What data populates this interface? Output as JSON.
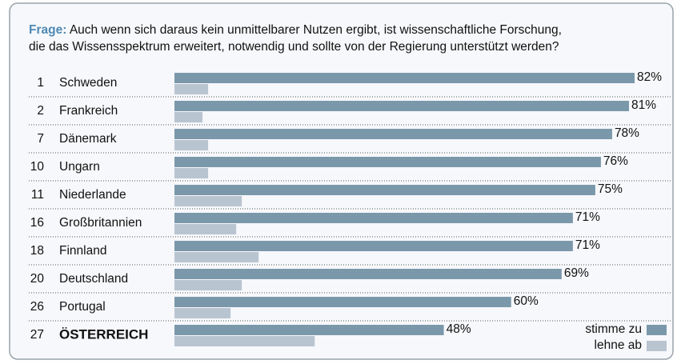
{
  "chart_data": {
    "type": "bar",
    "orientation": "horizontal",
    "title_label": "Frage:",
    "title_lines": [
      "Auch wenn sich daraus kein unmittelbarer Nutzen ergibt, ist wissenschaftliche Forschung,",
      "die das Wissensspektrum erweitert, notwendig und sollte von der Regierung unterstützt werden?"
    ],
    "ranks": [
      1,
      2,
      7,
      10,
      11,
      16,
      18,
      20,
      26,
      27
    ],
    "categories": [
      "Schweden",
      "Frankreich",
      "Dänemark",
      "Ungarn",
      "Niederlande",
      "Großbritannien",
      "Finnland",
      "Deutschland",
      "Portugal",
      "ÖSTERREICH"
    ],
    "highlight": "ÖSTERREICH",
    "highlight_color": "#d62a2a",
    "xlim": [
      0,
      82
    ],
    "series": [
      {
        "name": "stimme zu",
        "color": "#7b98ab",
        "values": [
          82,
          81,
          78,
          76,
          75,
          71,
          71,
          69,
          60,
          48
        ],
        "value_labels": [
          "82%",
          "81%",
          "78%",
          "76%",
          "75%",
          "71%",
          "71%",
          "69%",
          "60%",
          "48%"
        ]
      },
      {
        "name": "lehne ab",
        "color": "#b9c4d1",
        "values": [
          6,
          5,
          6,
          6,
          12,
          11,
          15,
          12,
          10,
          25
        ]
      }
    ],
    "legend": "bottom-right"
  }
}
